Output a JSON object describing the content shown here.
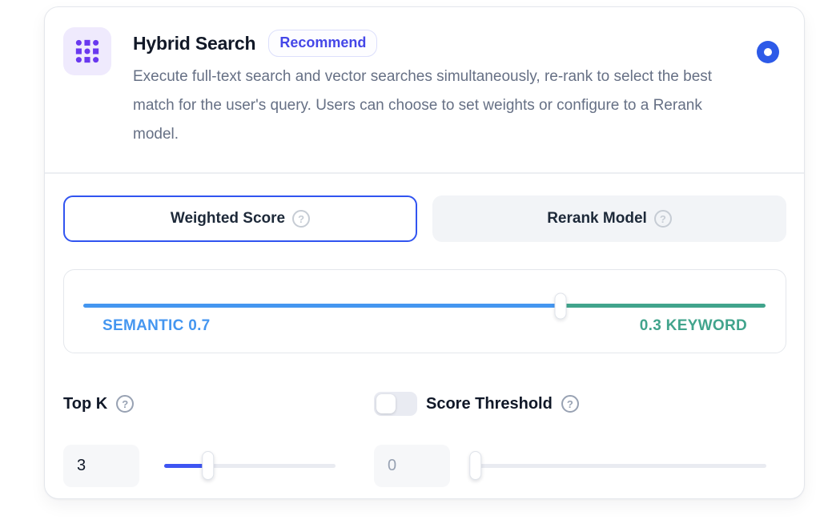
{
  "panel": {
    "title": "Hybrid Search",
    "badge": "Recommend",
    "description": "Execute full-text search and vector searches simultaneously, re-rank to select the best match for the user's query. Users can choose to set weights or configure to a Rerank model.",
    "icon": "grid-dots-icon",
    "selected": true
  },
  "tabs": {
    "weighted_score": {
      "label": "Weighted Score",
      "active": true
    },
    "rerank_model": {
      "label": "Rerank Model",
      "active": false
    }
  },
  "weight_slider": {
    "semantic_label": "SEMANTIC",
    "semantic_value": "0.7",
    "keyword_value": "0.3",
    "keyword_label": "KEYWORD",
    "semantic_percent": 70
  },
  "top_k": {
    "label": "Top K",
    "value": "3",
    "slider_percent": 25
  },
  "score_threshold": {
    "label": "Score Threshold",
    "toggle_on": false,
    "value": "0",
    "slider_percent": 0
  },
  "help_icon_glyph": "?",
  "colors": {
    "primary_blue": "#3154f0",
    "radio_blue": "#2d5ae8",
    "semantic_blue": "#4496f0",
    "keyword_green": "#41a48c",
    "icon_purple": "#6938ef",
    "badge_indigo": "#4547e8"
  }
}
